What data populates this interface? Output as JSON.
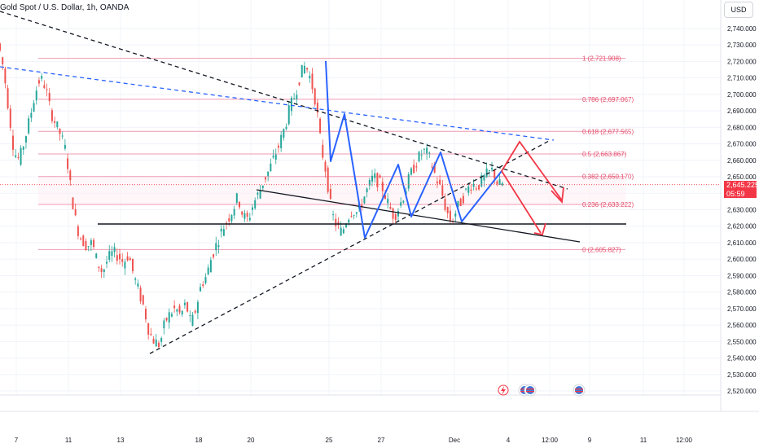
{
  "header": {
    "title": "Gold Spot / U.S. Dollar, 1h, OANDA",
    "currency_button": "USD"
  },
  "price_tag": {
    "price": "2,645.225",
    "countdown": "05:59",
    "color": "#f23645"
  },
  "colors": {
    "up_candle": "#26a69a",
    "down_candle": "#ef5350",
    "fib_line": "#ef9ab0",
    "fib_label": "#e44e6c",
    "trend_dashed_black": "#131722",
    "trend_dashed_blue": "#2962ff",
    "pattern_blue": "#2962ff",
    "projection_red": "#f23645"
  },
  "chart_data": {
    "type": "candlestick",
    "title": "Gold Spot / U.S. Dollar, 1h, OANDA",
    "ylim": [
      2515,
      2745
    ],
    "y_ticks": [
      "2,520.000",
      "2,530.000",
      "2,540.000",
      "2,550.000",
      "2,560.000",
      "2,570.000",
      "2,580.000",
      "2,590.000",
      "2,600.000",
      "2,610.000",
      "2,620.000",
      "2,630.000",
      "2,640.000",
      "2,650.000",
      "2,660.000",
      "2,670.000",
      "2,680.000",
      "2,690.000",
      "2,700.000",
      "2,710.000",
      "2,720.000",
      "2,730.000",
      "2,740.000"
    ],
    "x_ticks": [
      "7",
      "11",
      "13",
      "18",
      "20",
      "25",
      "27",
      "Dec",
      "4",
      "12:00",
      "9",
      "11",
      "12:00"
    ],
    "close_path": [
      [
        0,
        2731
      ],
      [
        2,
        2715
      ],
      [
        4,
        2690
      ],
      [
        6,
        2665
      ],
      [
        8,
        2660
      ],
      [
        10,
        2672
      ],
      [
        12,
        2685
      ],
      [
        14,
        2700
      ],
      [
        16,
        2710
      ],
      [
        18,
        2705
      ],
      [
        20,
        2690
      ],
      [
        22,
        2682
      ],
      [
        24,
        2675
      ],
      [
        26,
        2665
      ],
      [
        28,
        2640
      ],
      [
        30,
        2620
      ],
      [
        32,
        2612
      ],
      [
        34,
        2608
      ],
      [
        36,
        2610
      ],
      [
        38,
        2598
      ],
      [
        40,
        2592
      ],
      [
        42,
        2600
      ],
      [
        44,
        2604
      ],
      [
        46,
        2602
      ],
      [
        48,
        2598
      ],
      [
        50,
        2603
      ],
      [
        52,
        2590
      ],
      [
        54,
        2580
      ],
      [
        56,
        2570
      ],
      [
        58,
        2555
      ],
      [
        60,
        2550
      ],
      [
        62,
        2548
      ],
      [
        64,
        2562
      ],
      [
        66,
        2567
      ],
      [
        68,
        2570
      ],
      [
        70,
        2566
      ],
      [
        72,
        2573
      ],
      [
        74,
        2560
      ],
      [
        76,
        2571
      ],
      [
        78,
        2585
      ],
      [
        80,
        2590
      ],
      [
        82,
        2602
      ],
      [
        84,
        2610
      ],
      [
        86,
        2618
      ],
      [
        88,
        2624
      ],
      [
        90,
        2630
      ],
      [
        92,
        2638
      ],
      [
        94,
        2626
      ],
      [
        96,
        2624
      ],
      [
        98,
        2634
      ],
      [
        100,
        2640
      ],
      [
        102,
        2648
      ],
      [
        104,
        2654
      ],
      [
        106,
        2662
      ],
      [
        108,
        2670
      ],
      [
        110,
        2680
      ],
      [
        112,
        2692
      ],
      [
        114,
        2700
      ],
      [
        116,
        2712
      ],
      [
        118,
        2718
      ],
      [
        120,
        2709
      ],
      [
        122,
        2695
      ],
      [
        124,
        2668
      ],
      [
        126,
        2652
      ],
      [
        128,
        2628
      ],
      [
        130,
        2620
      ],
      [
        132,
        2616
      ],
      [
        134,
        2625
      ],
      [
        136,
        2630
      ],
      [
        138,
        2628
      ],
      [
        140,
        2636
      ],
      [
        142,
        2643
      ],
      [
        144,
        2650
      ],
      [
        146,
        2647
      ],
      [
        148,
        2642
      ],
      [
        150,
        2632
      ],
      [
        152,
        2626
      ],
      [
        154,
        2632
      ],
      [
        156,
        2640
      ],
      [
        158,
        2650
      ],
      [
        160,
        2657
      ],
      [
        162,
        2663
      ],
      [
        164,
        2666
      ],
      [
        166,
        2660
      ],
      [
        168,
        2650
      ],
      [
        170,
        2642
      ],
      [
        172,
        2630
      ],
      [
        174,
        2622
      ],
      [
        176,
        2630
      ],
      [
        178,
        2636
      ],
      [
        180,
        2642
      ],
      [
        182,
        2646
      ],
      [
        184,
        2644
      ],
      [
        186,
        2648
      ],
      [
        188,
        2652
      ],
      [
        190,
        2654
      ],
      [
        192,
        2645
      ],
      [
        194,
        2646
      ]
    ],
    "fibonacci": [
      {
        "ratio": "1",
        "price": 2721.908,
        "label": "1 (2,721.908)"
      },
      {
        "ratio": "0.786",
        "price": 2697.067,
        "label": "0.786 (2,697.067)"
      },
      {
        "ratio": "0.618",
        "price": 2677.565,
        "label": "0.618 (2,677.565)"
      },
      {
        "ratio": "0.5",
        "price": 2663.867,
        "label": "0.5 (2,663.867)"
      },
      {
        "ratio": "0.382",
        "price": 2650.17,
        "label": "0.382 (2,650.170)"
      },
      {
        "ratio": "0.236",
        "price": 2633.222,
        "label": "0.236 (2,633.222)"
      },
      {
        "ratio": "0",
        "price": 2605.827,
        "label": "0 (2,605.827)"
      }
    ],
    "last_price": 2645.225,
    "grid": true,
    "legend": "none"
  }
}
